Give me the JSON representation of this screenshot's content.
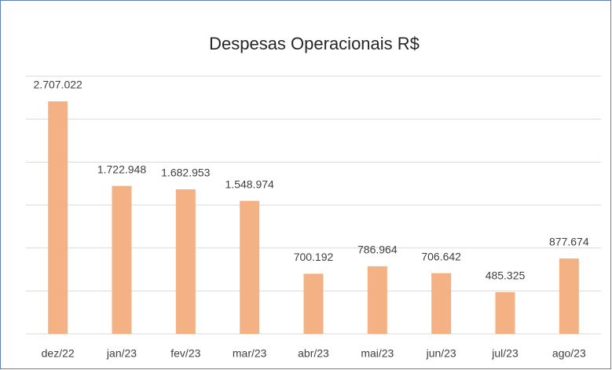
{
  "chart_data": {
    "type": "bar",
    "title": "Despesas Operacionais R$",
    "categories": [
      "dez/22",
      "jan/23",
      "fev/23",
      "mar/23",
      "abr/23",
      "mai/23",
      "jun/23",
      "jul/23",
      "ago/23"
    ],
    "values": [
      2707022,
      1722948,
      1682953,
      1548974,
      700192,
      786964,
      706642,
      485325,
      877674
    ],
    "value_labels": [
      "2.707.022",
      "1.722.948",
      "1.682.953",
      "1.548.974",
      "700.192",
      "786.964",
      "706.642",
      "485.325",
      "877.674"
    ],
    "color": "#f4b183",
    "ylim": [
      0,
      3000000
    ],
    "yticks": [
      0,
      500000,
      1000000,
      1500000,
      2000000,
      2500000,
      3000000
    ],
    "grid": true
  }
}
